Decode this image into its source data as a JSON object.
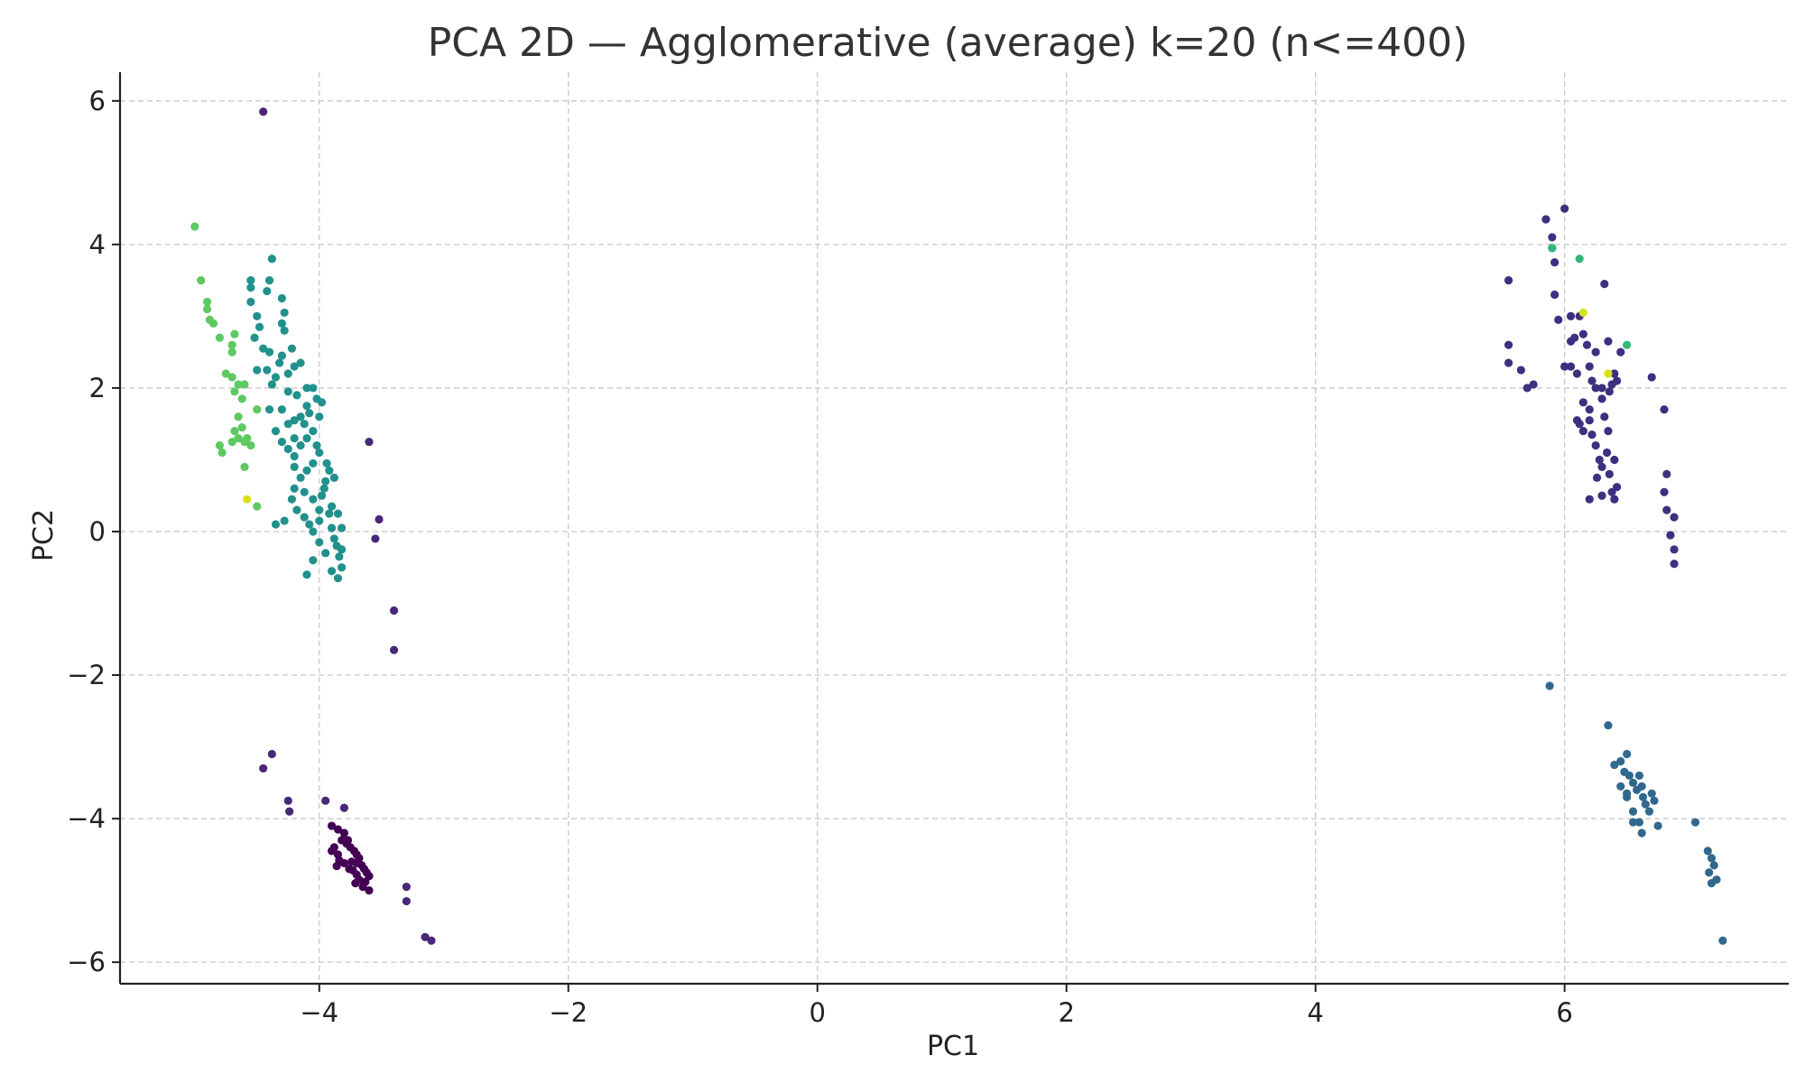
{
  "chart_data": {
    "type": "scatter",
    "title": "PCA 2D — Agglomerative (average) k=20 (n<=400)",
    "xlabel": "PC1",
    "ylabel": "PC2",
    "xlim": [
      -5.6,
      7.8
    ],
    "ylim": [
      -6.3,
      6.4
    ],
    "xticks": [
      -4,
      -2,
      0,
      2,
      4,
      6
    ],
    "yticks": [
      -6,
      -4,
      -2,
      0,
      2,
      4,
      6
    ],
    "xtick_labels": [
      "−4",
      "−2",
      "0",
      "2",
      "4",
      "6"
    ],
    "ytick_labels": [
      "−6",
      "−4",
      "−2",
      "0",
      "2",
      "4",
      "6"
    ],
    "grid": true,
    "colormap": "viridis",
    "series": [
      {
        "color": "#440154",
        "points": [
          [
            -3.9,
            -4.1
          ],
          [
            -3.85,
            -4.15
          ],
          [
            -3.8,
            -4.2
          ],
          [
            -3.82,
            -4.3
          ],
          [
            -3.78,
            -4.35
          ],
          [
            -3.75,
            -4.4
          ],
          [
            -3.72,
            -4.45
          ],
          [
            -3.7,
            -4.5
          ],
          [
            -3.68,
            -4.55
          ],
          [
            -3.74,
            -4.6
          ],
          [
            -3.8,
            -4.62
          ],
          [
            -3.85,
            -4.5
          ],
          [
            -3.88,
            -4.4
          ],
          [
            -3.66,
            -4.65
          ],
          [
            -3.64,
            -4.7
          ],
          [
            -3.62,
            -4.75
          ],
          [
            -3.7,
            -4.78
          ],
          [
            -3.76,
            -4.7
          ],
          [
            -3.6,
            -4.8
          ],
          [
            -3.63,
            -4.88
          ],
          [
            -3.68,
            -4.85
          ],
          [
            -3.73,
            -4.72
          ],
          [
            -3.84,
            -4.58
          ],
          [
            -3.9,
            -4.45
          ],
          [
            -3.86,
            -4.66
          ],
          [
            -3.7,
            -4.62
          ],
          [
            -3.6,
            -5.0
          ],
          [
            -3.65,
            -4.95
          ],
          [
            -3.71,
            -4.9
          ],
          [
            -3.77,
            -4.3
          ]
        ]
      },
      {
        "color": "#482878",
        "points": [
          [
            -3.6,
            1.25
          ],
          [
            -3.52,
            0.17
          ],
          [
            -3.55,
            -0.1
          ],
          [
            -3.4,
            -1.1
          ],
          [
            -3.4,
            -1.65
          ],
          [
            -4.38,
            -3.1
          ],
          [
            -4.45,
            -3.3
          ],
          [
            -4.25,
            -3.75
          ],
          [
            -4.24,
            -3.9
          ],
          [
            -3.3,
            -4.95
          ],
          [
            -3.3,
            -5.15
          ],
          [
            -3.15,
            -5.65
          ],
          [
            -3.1,
            -5.7
          ],
          [
            -4.45,
            5.85
          ],
          [
            -3.95,
            -3.75
          ],
          [
            -3.8,
            -3.85
          ]
        ]
      },
      {
        "color": "#3e2f7f",
        "points": [
          [
            5.55,
            3.5
          ],
          [
            5.55,
            2.6
          ],
          [
            5.55,
            2.35
          ],
          [
            5.65,
            2.25
          ],
          [
            5.7,
            2.0
          ],
          [
            5.75,
            2.05
          ],
          [
            5.85,
            4.35
          ],
          [
            5.9,
            4.1
          ],
          [
            5.9,
            3.95
          ],
          [
            5.92,
            3.75
          ],
          [
            5.95,
            2.95
          ],
          [
            5.92,
            3.3
          ],
          [
            6.0,
            4.5
          ],
          [
            6.05,
            3.0
          ],
          [
            6.08,
            2.7
          ],
          [
            6.12,
            3.0
          ],
          [
            6.15,
            2.75
          ],
          [
            6.05,
            2.3
          ],
          [
            6.1,
            2.2
          ],
          [
            6.12,
            1.5
          ],
          [
            6.1,
            1.55
          ],
          [
            6.15,
            1.8
          ],
          [
            6.18,
            2.6
          ],
          [
            6.2,
            2.3
          ],
          [
            6.22,
            2.1
          ],
          [
            6.25,
            2.0
          ],
          [
            6.2,
            1.7
          ],
          [
            6.22,
            1.35
          ],
          [
            6.25,
            1.2
          ],
          [
            6.28,
            1.0
          ],
          [
            6.3,
            0.9
          ],
          [
            6.26,
            0.75
          ],
          [
            6.32,
            1.6
          ],
          [
            6.35,
            1.4
          ],
          [
            6.34,
            1.1
          ],
          [
            6.36,
            0.8
          ],
          [
            6.38,
            0.55
          ],
          [
            6.4,
            0.45
          ],
          [
            6.42,
            0.62
          ],
          [
            6.4,
            2.2
          ],
          [
            6.38,
            2.05
          ],
          [
            6.42,
            2.1
          ],
          [
            6.45,
            2.5
          ],
          [
            6.35,
            2.65
          ],
          [
            6.32,
            3.45
          ],
          [
            6.2,
            1.55
          ],
          [
            6.15,
            1.4
          ],
          [
            6.3,
            2.0
          ],
          [
            6.25,
            2.5
          ],
          [
            6.3,
            1.85
          ],
          [
            6.36,
            1.95
          ],
          [
            6.4,
            1.0
          ],
          [
            6.3,
            0.5
          ],
          [
            6.2,
            0.45
          ],
          [
            6.7,
            2.15
          ],
          [
            6.8,
            1.7
          ],
          [
            6.82,
            0.8
          ],
          [
            6.8,
            0.55
          ],
          [
            6.82,
            0.3
          ],
          [
            6.85,
            -0.05
          ],
          [
            6.88,
            -0.25
          ],
          [
            6.88,
            -0.45
          ],
          [
            6.88,
            0.2
          ],
          [
            6.0,
            2.3
          ],
          [
            6.05,
            2.65
          ]
        ]
      },
      {
        "color": "#31688e",
        "points": [
          [
            6.35,
            -2.7
          ],
          [
            6.4,
            -3.25
          ],
          [
            6.45,
            -3.2
          ],
          [
            6.5,
            -3.1
          ],
          [
            6.48,
            -3.35
          ],
          [
            6.52,
            -3.4
          ],
          [
            6.55,
            -3.5
          ],
          [
            6.58,
            -3.6
          ],
          [
            6.5,
            -3.7
          ],
          [
            6.55,
            -3.9
          ],
          [
            6.6,
            -3.4
          ],
          [
            6.62,
            -3.55
          ],
          [
            6.63,
            -3.7
          ],
          [
            6.65,
            -3.8
          ],
          [
            6.7,
            -3.65
          ],
          [
            6.72,
            -3.75
          ],
          [
            6.68,
            -3.9
          ],
          [
            6.6,
            -4.05
          ],
          [
            6.62,
            -4.2
          ],
          [
            6.55,
            -4.05
          ],
          [
            6.45,
            -3.55
          ],
          [
            6.5,
            -3.65
          ],
          [
            6.75,
            -4.1
          ],
          [
            7.05,
            -4.05
          ],
          [
            7.15,
            -4.45
          ],
          [
            7.18,
            -4.55
          ],
          [
            7.2,
            -4.65
          ],
          [
            7.16,
            -4.75
          ],
          [
            7.18,
            -4.9
          ],
          [
            7.22,
            -4.85
          ],
          [
            7.27,
            -5.7
          ],
          [
            5.88,
            -2.15
          ]
        ]
      },
      {
        "color": "#21918c",
        "points": [
          [
            -4.55,
            3.5
          ],
          [
            -4.55,
            3.4
          ],
          [
            -4.4,
            3.5
          ],
          [
            -4.38,
            3.8
          ],
          [
            -4.5,
            3.0
          ],
          [
            -4.55,
            3.2
          ],
          [
            -4.42,
            3.35
          ],
          [
            -4.3,
            3.25
          ],
          [
            -4.28,
            3.05
          ],
          [
            -4.3,
            2.9
          ],
          [
            -4.28,
            2.8
          ],
          [
            -4.4,
            2.5
          ],
          [
            -4.45,
            2.55
          ],
          [
            -4.3,
            2.45
          ],
          [
            -4.32,
            2.35
          ],
          [
            -4.25,
            2.2
          ],
          [
            -4.2,
            2.3
          ],
          [
            -4.15,
            2.35
          ],
          [
            -4.35,
            2.15
          ],
          [
            -4.38,
            2.05
          ],
          [
            -4.1,
            2.0
          ],
          [
            -4.05,
            2.0
          ],
          [
            -4.02,
            1.85
          ],
          [
            -4.1,
            1.75
          ],
          [
            -4.15,
            1.6
          ],
          [
            -4.2,
            1.55
          ],
          [
            -4.25,
            1.5
          ],
          [
            -4.3,
            1.7
          ],
          [
            -4.4,
            1.7
          ],
          [
            -4.35,
            1.4
          ],
          [
            -4.3,
            1.25
          ],
          [
            -4.25,
            1.15
          ],
          [
            -4.2,
            1.05
          ],
          [
            -4.15,
            1.2
          ],
          [
            -4.1,
            1.3
          ],
          [
            -4.05,
            1.4
          ],
          [
            -4.0,
            1.6
          ],
          [
            -4.02,
            1.2
          ],
          [
            -4.05,
            0.95
          ],
          [
            -4.1,
            0.85
          ],
          [
            -4.15,
            0.75
          ],
          [
            -4.2,
            0.6
          ],
          [
            -4.22,
            0.45
          ],
          [
            -4.18,
            0.3
          ],
          [
            -4.12,
            0.2
          ],
          [
            -4.08,
            0.1
          ],
          [
            -4.05,
            0.0
          ],
          [
            -4.0,
            0.3
          ],
          [
            -3.98,
            0.5
          ],
          [
            -3.95,
            0.7
          ],
          [
            -3.92,
            0.25
          ],
          [
            -3.9,
            0.05
          ],
          [
            -3.88,
            -0.1
          ],
          [
            -3.86,
            -0.2
          ],
          [
            -3.84,
            -0.35
          ],
          [
            -3.82,
            -0.5
          ],
          [
            -3.85,
            -0.65
          ],
          [
            -3.9,
            -0.55
          ],
          [
            -3.95,
            -0.3
          ],
          [
            -4.0,
            -0.15
          ],
          [
            -4.05,
            -0.4
          ],
          [
            -4.1,
            -0.6
          ],
          [
            -3.82,
            -0.25
          ],
          [
            -3.82,
            0.05
          ],
          [
            -3.85,
            0.25
          ],
          [
            -3.92,
            0.85
          ],
          [
            -4.0,
            1.1
          ],
          [
            -4.12,
            0.55
          ],
          [
            -4.2,
            0.9
          ],
          [
            -4.28,
            0.15
          ],
          [
            -4.35,
            0.1
          ],
          [
            -4.05,
            0.45
          ],
          [
            -3.96,
            0.6
          ],
          [
            -3.98,
            1.8
          ],
          [
            -4.08,
            1.65
          ],
          [
            -4.18,
            1.9
          ],
          [
            -4.25,
            1.95
          ],
          [
            -4.22,
            2.55
          ],
          [
            -4.48,
            2.85
          ],
          [
            -4.52,
            2.7
          ],
          [
            -4.5,
            2.25
          ],
          [
            -4.42,
            2.25
          ],
          [
            -4.12,
            1.5
          ],
          [
            -4.2,
            1.3
          ],
          [
            -4.0,
            0.15
          ],
          [
            -3.94,
            0.95
          ],
          [
            -3.88,
            0.75
          ],
          [
            -3.9,
            0.35
          ]
        ]
      },
      {
        "color": "#35b779",
        "points": [
          [
            6.12,
            3.8
          ],
          [
            6.5,
            2.6
          ],
          [
            5.9,
            3.95
          ]
        ]
      },
      {
        "color": "#5ec962",
        "points": [
          [
            -5.0,
            4.25
          ],
          [
            -4.95,
            3.5
          ],
          [
            -4.9,
            3.1
          ],
          [
            -4.88,
            2.95
          ],
          [
            -4.85,
            2.9
          ],
          [
            -4.9,
            3.2
          ],
          [
            -4.8,
            2.7
          ],
          [
            -4.7,
            2.6
          ],
          [
            -4.68,
            2.75
          ],
          [
            -4.7,
            2.5
          ],
          [
            -4.75,
            2.2
          ],
          [
            -4.7,
            2.15
          ],
          [
            -4.65,
            2.05
          ],
          [
            -4.68,
            1.95
          ],
          [
            -4.65,
            1.6
          ],
          [
            -4.62,
            1.45
          ],
          [
            -4.7,
            1.25
          ],
          [
            -4.65,
            1.3
          ],
          [
            -4.6,
            1.25
          ],
          [
            -4.58,
            1.3
          ],
          [
            -4.55,
            1.2
          ],
          [
            -4.6,
            0.9
          ],
          [
            -4.5,
            0.35
          ],
          [
            -4.5,
            1.7
          ],
          [
            -4.62,
            1.85
          ],
          [
            -4.78,
            1.1
          ],
          [
            -4.8,
            1.2
          ],
          [
            -4.68,
            1.4
          ],
          [
            -4.6,
            2.05
          ]
        ]
      },
      {
        "color": "#d8e219",
        "points": [
          [
            -4.58,
            0.45
          ],
          [
            6.35,
            2.2
          ],
          [
            6.15,
            3.05
          ]
        ]
      }
    ]
  }
}
